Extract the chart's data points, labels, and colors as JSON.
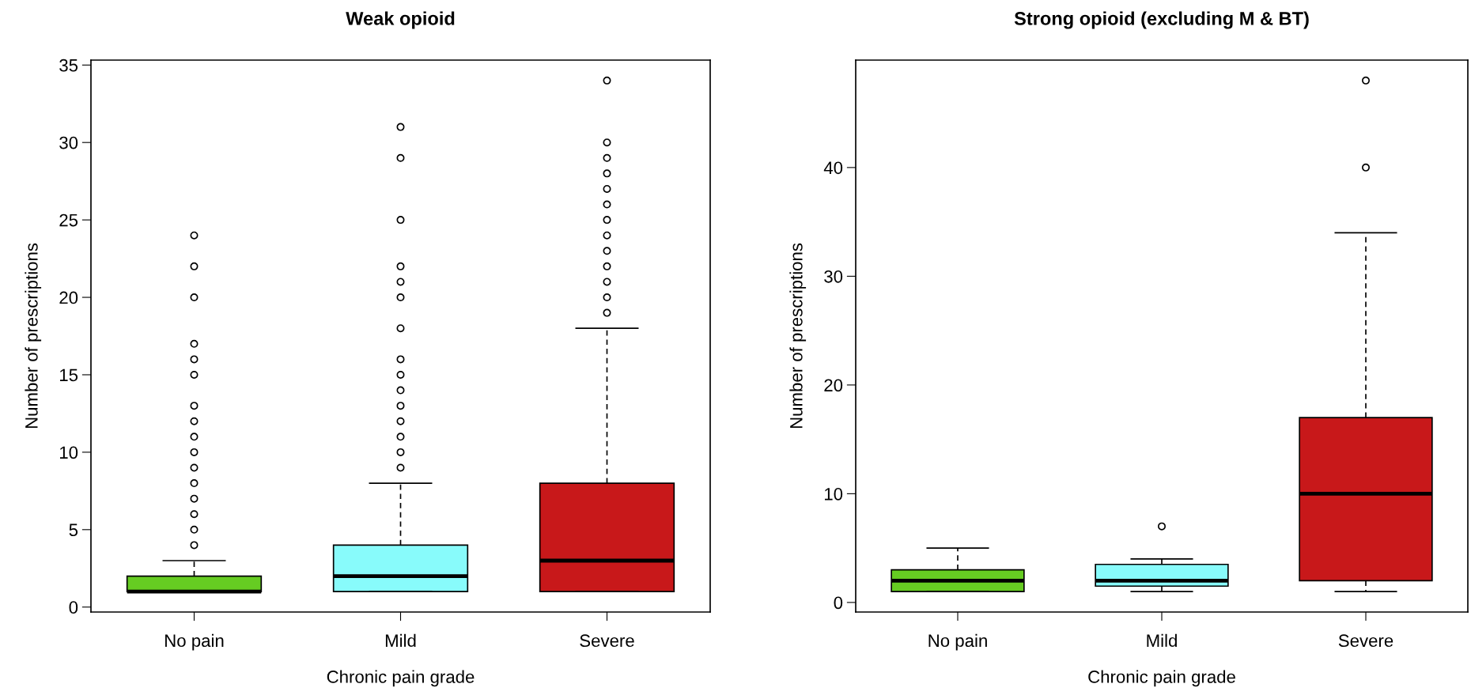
{
  "chart_data": [
    {
      "type": "box",
      "title": "Weak opioid",
      "xlabel": "Chronic pain grade",
      "ylabel": "Number of prescriptions",
      "categories": [
        "No pain",
        "Mild",
        "Severe"
      ],
      "colors": [
        "#66cc22",
        "#88fbfb",
        "#c8181a"
      ],
      "boxes": [
        {
          "low": 1,
          "q1": 1,
          "median": 1,
          "q3": 2,
          "high": 3,
          "outliers": [
            4,
            5,
            6,
            7,
            8,
            9,
            10,
            11,
            12,
            13,
            15,
            16,
            17,
            20,
            22,
            24
          ]
        },
        {
          "low": 1,
          "q1": 1,
          "median": 2,
          "q3": 4,
          "high": 8,
          "outliers": [
            9,
            10,
            11,
            12,
            13,
            14,
            15,
            16,
            18,
            20,
            21,
            22,
            25,
            29,
            31
          ]
        },
        {
          "low": 1,
          "q1": 1,
          "median": 3,
          "q3": 8,
          "high": 18,
          "outliers": [
            19,
            20,
            21,
            22,
            23,
            24,
            25,
            26,
            27,
            28,
            29,
            30,
            34
          ]
        }
      ],
      "ylim": [
        -0.32,
        35.32
      ],
      "yticks": [
        0,
        5,
        10,
        15,
        20,
        25,
        30,
        35
      ],
      "grid": false,
      "legend": false
    },
    {
      "type": "box",
      "title": "Strong opioid (excluding M & BT)",
      "xlabel": "Chronic pain grade",
      "ylabel": "Number of prescriptions",
      "categories": [
        "No pain",
        "Mild",
        "Severe"
      ],
      "colors": [
        "#66cc22",
        "#88fbfb",
        "#c8181a"
      ],
      "boxes": [
        {
          "low": 1,
          "q1": 1,
          "median": 2,
          "q3": 3,
          "high": 5
        },
        {
          "low": 1,
          "q1": 1.5,
          "median": 2,
          "q3": 3.5,
          "high": 4,
          "outliers": [
            7
          ]
        },
        {
          "low": 1,
          "q1": 2,
          "median": 10,
          "q3": 17,
          "high": 34,
          "outliers": [
            40,
            48
          ]
        }
      ],
      "ylim": [
        -0.88,
        49.88
      ],
      "yticks": [
        0,
        10,
        20,
        30,
        40
      ],
      "grid": false,
      "legend": false
    }
  ]
}
